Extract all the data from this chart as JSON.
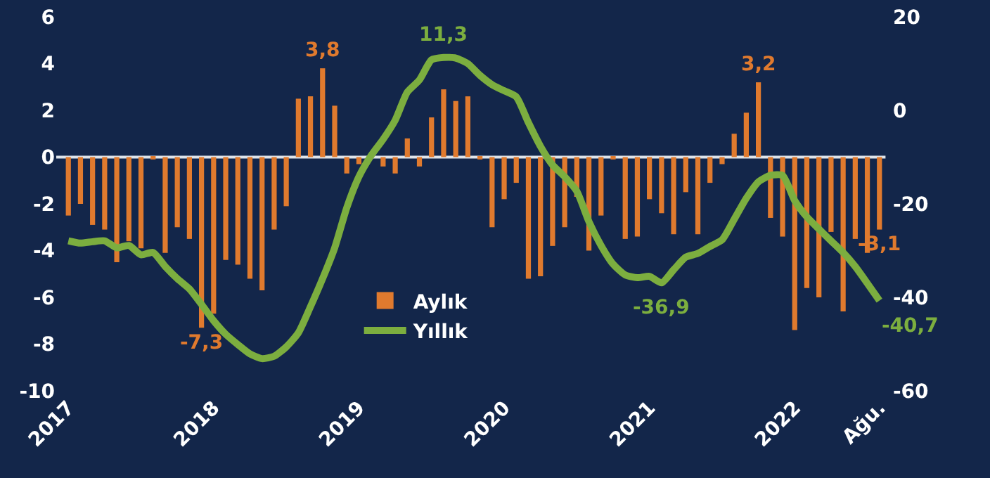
{
  "chart_data": {
    "type": "bar",
    "categories": [
      "2017",
      null,
      null,
      null,
      null,
      null,
      null,
      null,
      null,
      null,
      null,
      null,
      "2018",
      null,
      null,
      null,
      null,
      null,
      null,
      null,
      null,
      null,
      null,
      null,
      "2019",
      null,
      null,
      null,
      null,
      null,
      null,
      null,
      null,
      null,
      null,
      null,
      "2020",
      null,
      null,
      null,
      null,
      null,
      null,
      null,
      null,
      null,
      null,
      null,
      "2021",
      null,
      null,
      null,
      null,
      null,
      null,
      null,
      null,
      null,
      null,
      null,
      "2022",
      null,
      null,
      null,
      null,
      null,
      null,
      "Ağu."
    ],
    "series": [
      {
        "name": "Aylık",
        "color": "#e07a2e",
        "values": [
          -2.5,
          -2.0,
          -2.9,
          -3.1,
          -4.5,
          -3.6,
          -3.9,
          -0.1,
          -4.1,
          -3.0,
          -3.5,
          -7.3,
          -6.7,
          -4.4,
          -4.6,
          -5.2,
          -5.7,
          -3.1,
          -2.1,
          2.5,
          2.6,
          3.8,
          2.2,
          -0.7,
          -0.3,
          null,
          -0.4,
          -0.7,
          0.8,
          -0.4,
          1.7,
          2.9,
          2.4,
          2.6,
          -0.1,
          -3.0,
          -1.8,
          -1.1,
          -5.2,
          -5.1,
          -3.8,
          -3.0,
          -1.7,
          -4.0,
          -2.5,
          -0.1,
          -3.5,
          -3.4,
          -1.8,
          -2.4,
          -3.3,
          -1.5,
          -3.3,
          -1.1,
          -0.3,
          1.0,
          1.9,
          3.2,
          -2.6,
          -3.4,
          -7.4,
          -5.6,
          -6.0,
          -3.2,
          -6.6,
          -3.5,
          -4.1,
          -3.1
        ],
        "value_labels": [
          null,
          null,
          null,
          null,
          null,
          null,
          null,
          null,
          null,
          null,
          null,
          "-7,3",
          null,
          null,
          null,
          null,
          null,
          null,
          null,
          null,
          null,
          "3,8",
          null,
          null,
          null,
          null,
          null,
          null,
          null,
          null,
          null,
          null,
          null,
          null,
          null,
          null,
          null,
          null,
          null,
          null,
          null,
          null,
          null,
          null,
          null,
          null,
          null,
          null,
          null,
          null,
          null,
          null,
          null,
          null,
          null,
          null,
          null,
          "3,2",
          null,
          null,
          null,
          null,
          null,
          null,
          null,
          null,
          null,
          "-3,1"
        ]
      },
      {
        "name": "Yıllık",
        "type": "line",
        "axis": "y2",
        "color": "#7cae3f",
        "values": [
          -27.9,
          -28.4,
          -28.1,
          -27.9,
          -29.4,
          -28.9,
          -30.9,
          -30.4,
          -33.4,
          -36.0,
          -38.2,
          -41.5,
          -45.0,
          -47.9,
          -50.1,
          -52.1,
          -53.1,
          -52.6,
          -50.6,
          -47.6,
          -42.0,
          -36.0,
          -29.4,
          -20.8,
          -14.2,
          -9.7,
          -6.2,
          -2.1,
          3.9,
          6.5,
          10.8,
          11.3,
          11.2,
          10.0,
          7.5,
          5.5,
          4.2,
          2.9,
          -2.6,
          -7.7,
          -11.7,
          -14.2,
          -17.3,
          -23.8,
          -28.9,
          -32.9,
          -35.2,
          -35.8,
          -35.5,
          -36.9,
          -34.1,
          -31.4,
          -30.6,
          -29.1,
          -27.7,
          -23.3,
          -18.8,
          -15.3,
          -13.9,
          -13.9,
          -19.3,
          -22.8,
          -25.4,
          -27.9,
          -30.4,
          -33.4,
          -37.0,
          -40.7
        ],
        "value_labels": [
          null,
          null,
          null,
          null,
          null,
          null,
          null,
          null,
          null,
          null,
          null,
          null,
          null,
          null,
          null,
          null,
          null,
          null,
          null,
          null,
          null,
          null,
          null,
          null,
          null,
          null,
          null,
          null,
          null,
          null,
          null,
          "11,3",
          null,
          null,
          null,
          null,
          null,
          null,
          null,
          null,
          null,
          null,
          null,
          null,
          null,
          null,
          null,
          null,
          null,
          "-36,9",
          null,
          null,
          null,
          null,
          null,
          null,
          null,
          null,
          null,
          null,
          null,
          null,
          null,
          null,
          null,
          null,
          null,
          "-40,7"
        ]
      }
    ],
    "ylim": [
      -10,
      6
    ],
    "yticks": [
      -10,
      -8,
      -6,
      -4,
      -2,
      0,
      2,
      4,
      6
    ],
    "y2lim": [
      -60,
      20
    ],
    "y2ticks": [
      -60,
      -40,
      -20,
      0,
      20
    ],
    "ref_lines": [
      {
        "axis": "y",
        "value": 0,
        "color": "#dfe4ea"
      }
    ],
    "grid": false,
    "legend": "bottom",
    "marker": "none",
    "line_style": "solid"
  }
}
